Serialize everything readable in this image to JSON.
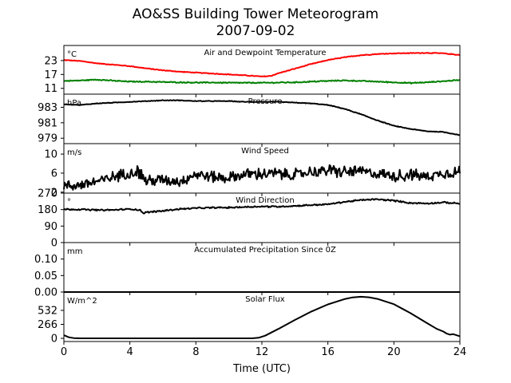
{
  "figure": {
    "title_line1": "AO&SS Building Tower Meteorogram",
    "title_line2": "2007-09-02",
    "xlabel": "Time (UTC)"
  },
  "colors": {
    "temperature": "#ff0000",
    "dewpoint": "#008000",
    "default": "#000000"
  },
  "chart_data": [
    {
      "type": "line",
      "title": "Air and Dewpoint Temperature",
      "unit_label": "°C",
      "x_range": [
        0,
        24
      ],
      "xticks": [
        0,
        4,
        8,
        12,
        16,
        20,
        24
      ],
      "y_range": [
        8.5,
        29.5
      ],
      "yticks": [
        11,
        17,
        23
      ],
      "series": [
        {
          "color": "#ff0000",
          "noise": 0.2,
          "x": [
            0,
            1,
            2,
            3,
            4,
            5,
            6,
            7,
            8,
            9,
            10,
            11,
            12,
            12.5,
            13,
            14,
            15,
            16,
            17,
            18,
            19,
            20,
            21,
            22,
            23,
            24
          ],
          "y": [
            23.2,
            22.8,
            21.8,
            21.2,
            20.6,
            19.6,
            18.8,
            18.2,
            17.8,
            17.4,
            17.0,
            16.6,
            16.1,
            16.3,
            17.5,
            19.5,
            21.5,
            23.2,
            24.4,
            25.3,
            25.8,
            26.1,
            26.2,
            26.3,
            26.1,
            25.4
          ]
        },
        {
          "color": "#008000",
          "noise": 0.3,
          "x": [
            0,
            1,
            2,
            3,
            4,
            5,
            6,
            7,
            8,
            9,
            10,
            11,
            12,
            13,
            14,
            15,
            16,
            17,
            18,
            19,
            20,
            21,
            22,
            23,
            24
          ],
          "y": [
            14.2,
            14.4,
            14.8,
            14.3,
            13.9,
            13.9,
            13.7,
            13.6,
            13.5,
            13.5,
            13.4,
            13.4,
            13.4,
            13.5,
            13.6,
            13.9,
            14.2,
            14.4,
            14.2,
            13.9,
            13.6,
            13.3,
            13.6,
            14.1,
            14.6
          ]
        }
      ]
    },
    {
      "type": "line",
      "title": "Pressure",
      "unit_label": "hPa",
      "x_range": [
        0,
        24
      ],
      "xticks": [
        0,
        4,
        8,
        12,
        16,
        20,
        24
      ],
      "y_range": [
        978.3,
        984.7
      ],
      "yticks": [
        979,
        981,
        983
      ],
      "series": [
        {
          "color": "#000000",
          "noise": 0.05,
          "x": [
            0,
            1,
            2,
            3,
            4,
            5,
            6,
            7,
            8,
            9,
            10,
            11,
            12,
            13,
            14,
            15,
            16,
            17,
            18,
            19,
            20,
            21,
            22,
            23,
            24
          ],
          "y": [
            983.4,
            983.3,
            983.5,
            983.6,
            983.7,
            983.8,
            983.9,
            983.9,
            983.8,
            983.8,
            983.8,
            983.7,
            983.7,
            983.7,
            983.6,
            983.5,
            983.3,
            982.8,
            982.1,
            981.3,
            980.6,
            980.2,
            979.9,
            979.8,
            979.4
          ]
        }
      ]
    },
    {
      "type": "line",
      "title": "Wind Speed",
      "unit_label": "m/s",
      "x_range": [
        0,
        24
      ],
      "xticks": [
        0,
        4,
        8,
        12,
        16,
        20,
        24
      ],
      "y_range": [
        1.8,
        12.2
      ],
      "yticks": [
        2,
        6,
        10
      ],
      "series": [
        {
          "color": "#000000",
          "noise": 1.5,
          "x": [
            0,
            1,
            2,
            3,
            4,
            4.5,
            5,
            6,
            7,
            8,
            9,
            10,
            11,
            12,
            13,
            14,
            15,
            16,
            17,
            18,
            19,
            20,
            21,
            22,
            23,
            24
          ],
          "y": [
            3.2,
            3.6,
            4.2,
            5.2,
            6.2,
            6.4,
            4.4,
            4.6,
            4.3,
            5.8,
            5.2,
            5.0,
            5.8,
            5.8,
            5.9,
            5.6,
            6.3,
            6.6,
            6.2,
            6.4,
            5.9,
            5.4,
            5.6,
            5.3,
            6.0,
            6.2
          ]
        }
      ]
    },
    {
      "type": "line",
      "title": "Wind Direction",
      "unit_label": "°",
      "x_range": [
        0,
        24
      ],
      "xticks": [
        0,
        4,
        8,
        12,
        16,
        20,
        24
      ],
      "y_range": [
        0,
        270
      ],
      "yticks": [
        0,
        90,
        180,
        270
      ],
      "series": [
        {
          "color": "#000000",
          "noise": 5,
          "x": [
            0,
            1,
            2,
            3,
            4,
            4.6,
            4.8,
            5,
            6,
            7,
            8,
            9,
            10,
            11,
            12,
            13,
            14,
            15,
            16,
            17,
            18,
            19,
            20,
            21,
            22,
            23,
            24
          ],
          "y": [
            182,
            181,
            177,
            178,
            183,
            178,
            162,
            165,
            173,
            183,
            188,
            190,
            191,
            194,
            197,
            196,
            200,
            205,
            209,
            222,
            232,
            236,
            229,
            216,
            214,
            219,
            213
          ]
        }
      ]
    },
    {
      "type": "line",
      "title": "Accumulated Precipitation Since 0Z",
      "unit_label": "mm",
      "x_range": [
        0,
        24
      ],
      "xticks": [
        0,
        4,
        8,
        12,
        16,
        20,
        24
      ],
      "y_range": [
        0,
        0.15
      ],
      "yticks": [
        0.0,
        0.05,
        0.1
      ],
      "ytick_labels": [
        "0.00",
        "0.05",
        "0.10"
      ],
      "series": [
        {
          "color": "#000000",
          "noise": 0,
          "x": [
            0,
            24
          ],
          "y": [
            0,
            0
          ]
        }
      ]
    },
    {
      "type": "line",
      "title": "Solar Flux",
      "unit_label": "W/m^2",
      "x_range": [
        0,
        24
      ],
      "xticks": [
        0,
        4,
        8,
        12,
        16,
        20,
        24
      ],
      "y_range": [
        -60,
        880
      ],
      "yticks": [
        0,
        266,
        532
      ],
      "series": [
        {
          "color": "#000000",
          "noise": 0,
          "x": [
            0,
            0.3,
            0.6,
            1,
            4,
            8,
            11.4,
            11.8,
            12.2,
            13,
            14,
            15,
            16,
            17,
            17.5,
            18,
            18.5,
            19,
            20,
            21,
            22,
            22.6,
            23,
            23.2,
            23.4,
            23.6,
            24
          ],
          "y": [
            60,
            20,
            5,
            0,
            0,
            0,
            0,
            12,
            50,
            180,
            350,
            510,
            645,
            745,
            778,
            790,
            780,
            750,
            650,
            480,
            290,
            180,
            130,
            90,
            70,
            80,
            40
          ]
        }
      ]
    }
  ]
}
